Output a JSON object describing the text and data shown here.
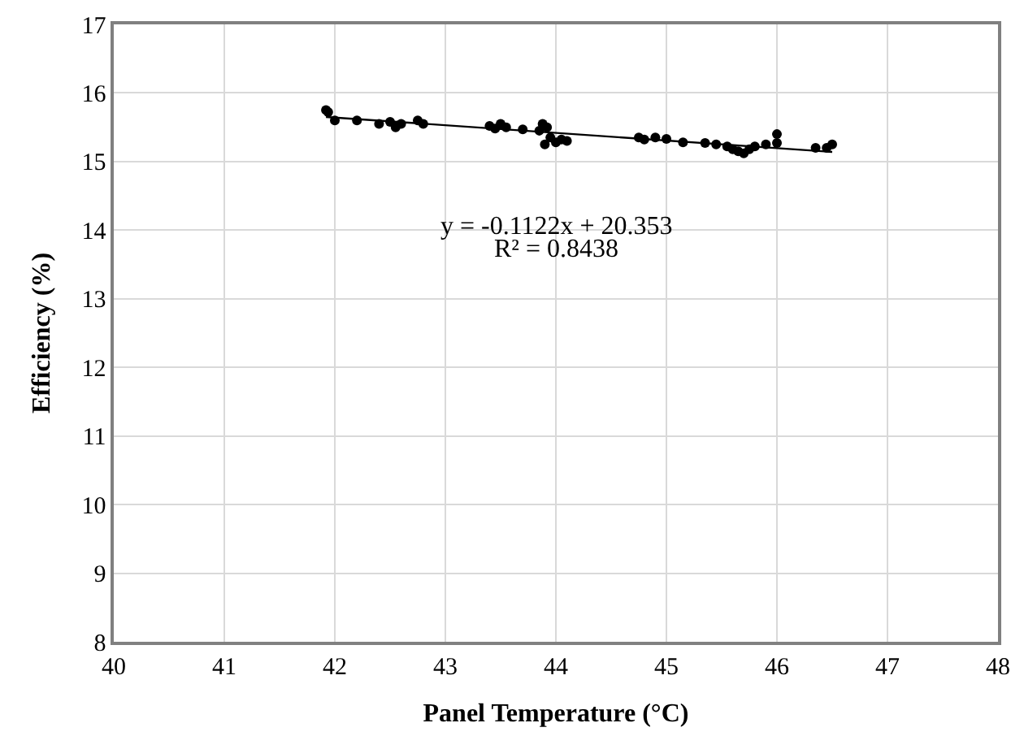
{
  "chart_data": {
    "type": "scatter",
    "xlabel": "Panel Temperature (°C)",
    "ylabel": "Efficiency (%)",
    "xlim": [
      40,
      48
    ],
    "xticks": [
      40,
      41,
      42,
      43,
      44,
      45,
      46,
      47,
      48
    ],
    "ylim": [
      8,
      17
    ],
    "yticks": [
      8,
      9,
      10,
      11,
      12,
      13,
      14,
      15,
      16,
      17
    ],
    "grid": true,
    "legend": false,
    "marker": "circle",
    "annotations": [
      "y = -0.1122x + 20.353",
      "R² = 0.8438"
    ],
    "series": [
      {
        "color": "#000000",
        "x": [
          41.92,
          41.94,
          42.0,
          42.2,
          42.4,
          42.5,
          42.55,
          42.6,
          42.75,
          42.8,
          43.4,
          43.45,
          43.5,
          43.55,
          43.7,
          43.85,
          43.88,
          43.9,
          43.92,
          43.95,
          44.0,
          44.05,
          44.1,
          44.75,
          44.8,
          44.9,
          45.0,
          45.15,
          45.35,
          45.45,
          45.55,
          45.6,
          45.65,
          45.7,
          45.75,
          45.8,
          45.9,
          46.0,
          46.0,
          46.35,
          46.45,
          46.5
        ],
        "values": [
          15.75,
          15.72,
          15.6,
          15.6,
          15.55,
          15.58,
          15.5,
          15.55,
          15.6,
          15.55,
          15.52,
          15.48,
          15.55,
          15.5,
          15.47,
          15.45,
          15.55,
          15.25,
          15.5,
          15.35,
          15.28,
          15.32,
          15.3,
          15.35,
          15.32,
          15.35,
          15.33,
          15.28,
          15.27,
          15.25,
          15.22,
          15.18,
          15.15,
          15.12,
          15.18,
          15.22,
          15.25,
          15.27,
          15.4,
          15.2,
          15.2,
          15.25
        ]
      },
      {
        "type": "line",
        "marker": "none",
        "color": "#000000",
        "x": [
          41.92,
          46.5
        ],
        "values": [
          15.65,
          15.14
        ]
      }
    ]
  }
}
